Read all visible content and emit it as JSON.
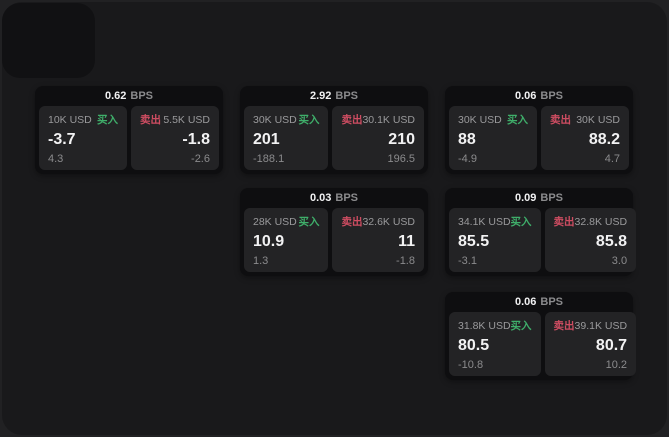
{
  "strings": {
    "bps_unit": "BPS",
    "buy_label": "买入",
    "sell_label": "卖出"
  },
  "colors": {
    "page_bg": "#212123",
    "window_bg": "#19191b",
    "card_bg": "#0e0e10",
    "panel_bg": "#232325",
    "buy_green": "#3fae6a",
    "sell_red": "#cf4d62",
    "text_primary": "#f2f2f3",
    "text_secondary": "#9a9a9c",
    "text_muted": "#8b8b8d"
  },
  "cards": [
    {
      "bps": "0.62",
      "buy": {
        "amount": "10K USD",
        "price": "-3.7",
        "delta": "4.3"
      },
      "sell": {
        "amount": "5.5K USD",
        "price": "-1.8",
        "delta": "-2.6"
      }
    },
    {
      "bps": "2.92",
      "buy": {
        "amount": "30K USD",
        "price": "201",
        "delta": "-188.1"
      },
      "sell": {
        "amount": "30.1K USD",
        "price": "210",
        "delta": "196.5"
      }
    },
    {
      "bps": "0.06",
      "buy": {
        "amount": "30K USD",
        "price": "88",
        "delta": "-4.9"
      },
      "sell": {
        "amount": "30K USD",
        "price": "88.2",
        "delta": "4.7"
      }
    },
    {
      "bps": "0.03",
      "buy": {
        "amount": "28K USD",
        "price": "10.9",
        "delta": "1.3"
      },
      "sell": {
        "amount": "32.6K USD",
        "price": "11",
        "delta": "-1.8"
      }
    },
    {
      "bps": "0.09",
      "buy": {
        "amount": "34.1K USD",
        "price": "85.5",
        "delta": "-3.1"
      },
      "sell": {
        "amount": "32.8K USD",
        "price": "85.8",
        "delta": "3.0"
      }
    },
    {
      "bps": "0.06",
      "buy": {
        "amount": "31.8K USD",
        "price": "80.5",
        "delta": "-10.8"
      },
      "sell": {
        "amount": "39.1K USD",
        "price": "80.7",
        "delta": "10.2"
      }
    }
  ]
}
